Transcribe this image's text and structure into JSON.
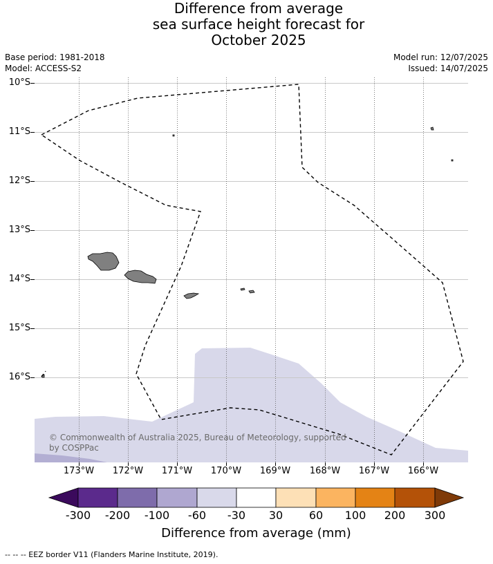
{
  "title": {
    "line1": "Difference from average",
    "line2": "sea surface height forecast for",
    "line3": "October 2025"
  },
  "meta": {
    "base_period": "Base period: 1981-2018",
    "model": "Model: ACCESS-S2",
    "model_run": "Model run: 12/07/2025",
    "issued": "Issued: 14/07/2025"
  },
  "map": {
    "lat_labels": [
      "10°S",
      "11°S",
      "12°S",
      "13°S",
      "14°S",
      "15°S",
      "16°S"
    ],
    "lon_labels": [
      "173°W",
      "172°W",
      "171°W",
      "170°W",
      "169°W",
      "168°W",
      "167°W",
      "166°W"
    ],
    "copyright": "© Commonwealth of Australia 2025, Bureau of Meteorology, supported by COSPPac",
    "land_color": "#808080",
    "anomaly_fill_color": "#d8d8ea",
    "anomaly_dark_color": "#b3afd3",
    "eez_border_style": "dashed"
  },
  "colorbar": {
    "label": "Difference from average (mm)",
    "ticks": [
      "-300",
      "-200",
      "-100",
      "-60",
      "-30",
      "30",
      "60",
      "100",
      "200",
      "300"
    ],
    "colors": [
      "#3b0a5c",
      "#5b2a8c",
      "#7e6cab",
      "#afa7d0",
      "#d9d9ea",
      "#ffffff",
      "#fde0b6",
      "#fbb460",
      "#e48315",
      "#b45208",
      "#7f3a08"
    ]
  },
  "footer": {
    "legend": "--  --  -- EEZ border V11 (Flanders Marine Institute, 2019)."
  }
}
